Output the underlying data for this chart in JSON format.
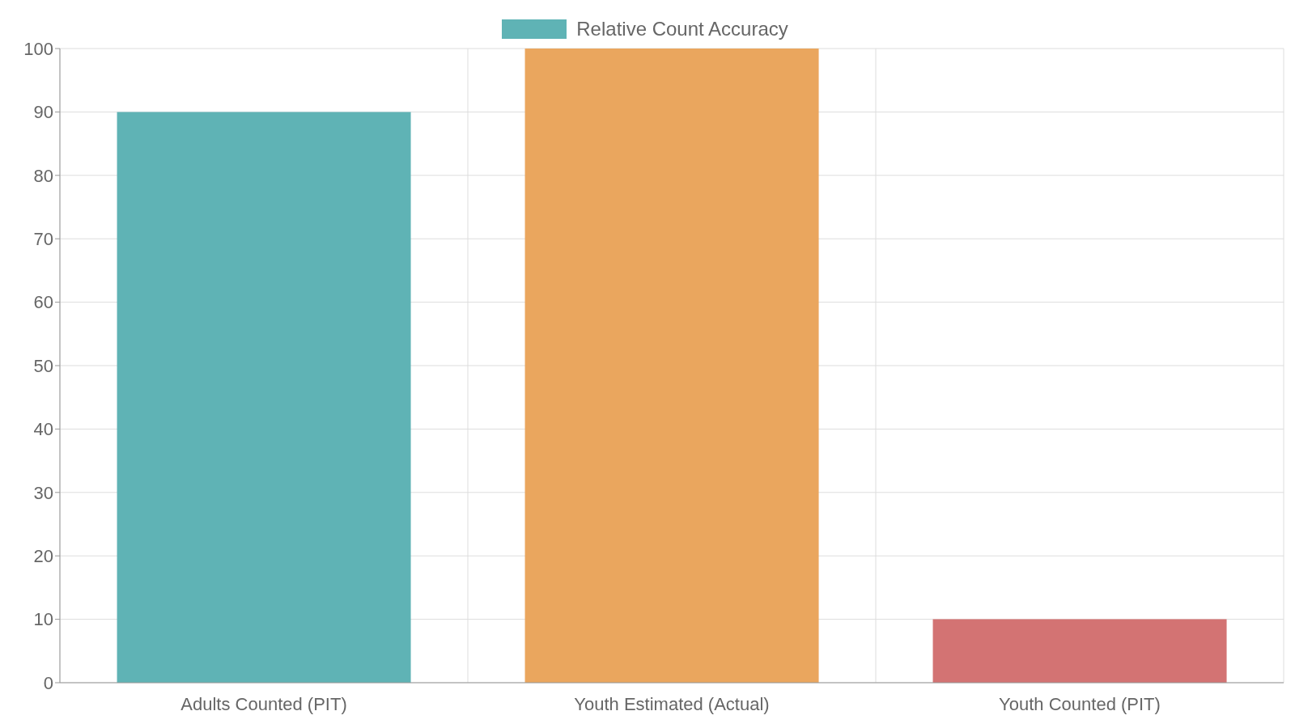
{
  "chart_data": {
    "type": "bar",
    "categories": [
      "Adults Counted (PIT)",
      "Youth Estimated (Actual)",
      "Youth Counted (PIT)"
    ],
    "series": [
      {
        "name": "Relative Count Accuracy",
        "color": "#5fb3b5",
        "colors": [
          "#5fb3b5",
          "#eaa65e",
          "#d37373"
        ],
        "values": [
          90,
          100,
          10
        ]
      }
    ],
    "ylim": [
      0,
      100
    ],
    "yticks": [
      0,
      10,
      20,
      30,
      40,
      50,
      60,
      70,
      80,
      90,
      100
    ],
    "grid": true,
    "legend": "top"
  }
}
